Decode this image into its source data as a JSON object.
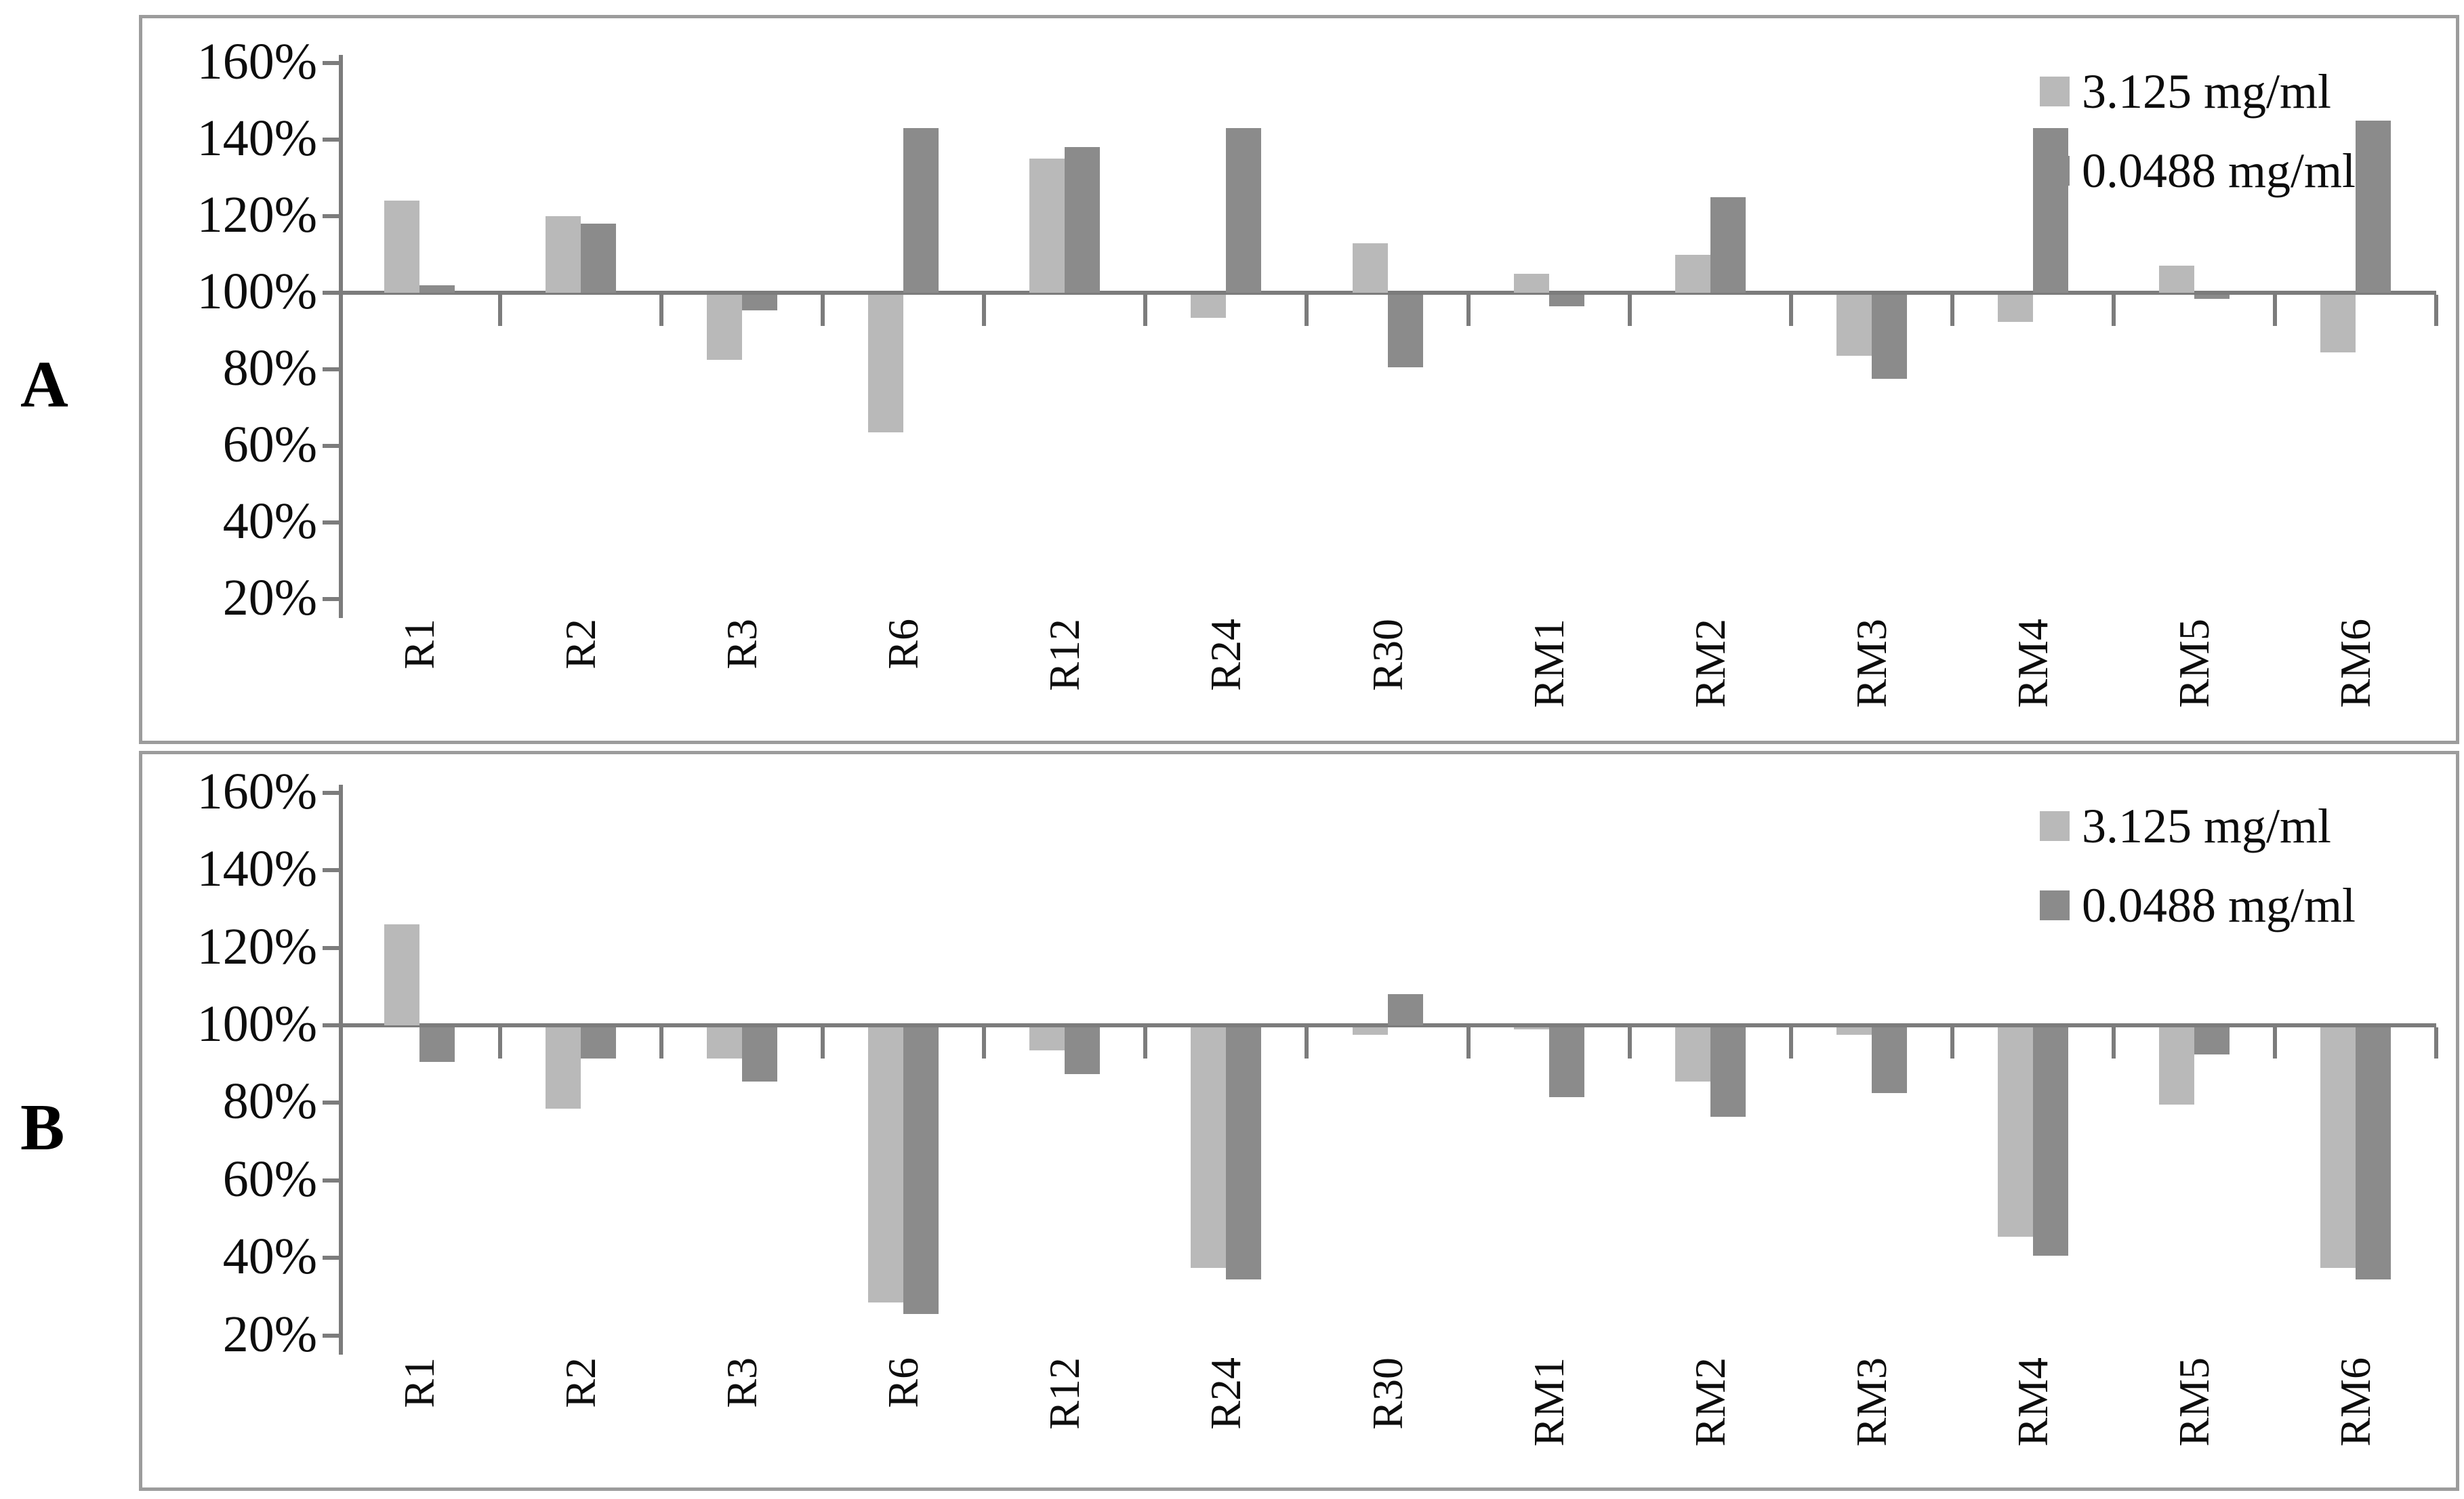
{
  "figure": {
    "panel_a_letter": "A",
    "panel_b_letter": "B"
  },
  "colors": {
    "series_light": "#b9b9b9",
    "series_dark": "#8b8b8b",
    "axis": "#7c7c7c",
    "panel_border": "#9c9c9c",
    "text": "#0d0d0d"
  },
  "legend": {
    "items": [
      {
        "label": "3.125 mg/ml",
        "color_key": "series_light"
      },
      {
        "label": "0.0488 mg/ml",
        "color_key": "series_dark"
      }
    ],
    "position": "top-right"
  },
  "chart_data": [
    {
      "id": "A",
      "type": "bar",
      "title": "",
      "xlabel": "",
      "ylabel": "",
      "baseline_anchor": 100,
      "ylim": [
        20,
        160
      ],
      "y_tick_labels": [
        "160%",
        "140%",
        "120%",
        "100%",
        "80%",
        "60%",
        "40%",
        "20%"
      ],
      "y_tick_values": [
        160,
        140,
        120,
        100,
        80,
        60,
        40,
        20
      ],
      "grid": false,
      "legend_position": "top-right",
      "categories": [
        "R1",
        "R2",
        "R3",
        "R6",
        "R12",
        "R24",
        "R30",
        "RM1",
        "RM2",
        "RM3",
        "RM4",
        "RM5",
        "RM6"
      ],
      "series": [
        {
          "name": "3.125 mg/ml",
          "color_key": "series_light",
          "values": [
            124,
            120,
            83,
            64,
            135,
            94,
            113,
            105,
            110,
            84,
            93,
            107,
            85
          ]
        },
        {
          "name": "0.0488 mg/ml",
          "color_key": "series_dark",
          "values": [
            102,
            118,
            96,
            143,
            138,
            143,
            81,
            97,
            125,
            78,
            143,
            99,
            145
          ]
        }
      ]
    },
    {
      "id": "B",
      "type": "bar",
      "title": "",
      "xlabel": "",
      "ylabel": "",
      "baseline_anchor": 100,
      "ylim": [
        20,
        160
      ],
      "y_tick_labels": [
        "160%",
        "140%",
        "120%",
        "100%",
        "80%",
        "60%",
        "40%",
        "20%"
      ],
      "y_tick_values": [
        160,
        140,
        120,
        100,
        80,
        60,
        40,
        20
      ],
      "grid": false,
      "legend_position": "top-right",
      "categories": [
        "R1",
        "R2",
        "R3",
        "R6",
        "R12",
        "R24",
        "R30",
        "RM1",
        "RM2",
        "RM3",
        "RM4",
        "RM5",
        "RM6"
      ],
      "series": [
        {
          "name": "3.125 mg/ml",
          "color_key": "series_light",
          "values": [
            126,
            79,
            92,
            29,
            94,
            38,
            98,
            99.5,
            86,
            98,
            46,
            80,
            38
          ]
        },
        {
          "name": "0.0488 mg/ml",
          "color_key": "series_dark",
          "values": [
            91,
            92,
            86,
            26,
            88,
            35,
            108,
            82,
            77,
            83,
            41,
            93,
            35
          ]
        }
      ]
    }
  ]
}
